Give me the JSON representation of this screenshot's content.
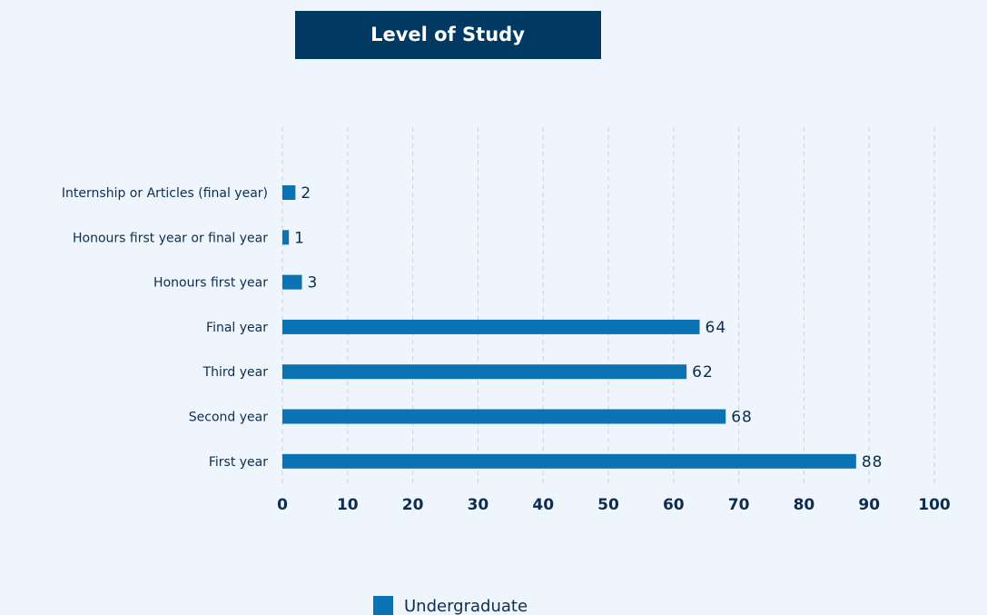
{
  "chart_data": {
    "type": "bar",
    "orientation": "horizontal",
    "title": "Level of Study",
    "categories": [
      "Internship or Articles (final year)",
      "Honours first year or final year",
      "Honours first year",
      "Final year",
      "Third year",
      "Second year",
      "First year"
    ],
    "series": [
      {
        "name": "Undergraduate",
        "color": "#0b72b3",
        "values": [
          2,
          1,
          3,
          64,
          62,
          68,
          88
        ]
      }
    ],
    "xlim": [
      0,
      100
    ],
    "xticks": [
      0,
      10,
      20,
      30,
      40,
      50,
      60,
      70,
      80,
      90,
      100
    ],
    "grid": true,
    "legend": "bottom"
  }
}
